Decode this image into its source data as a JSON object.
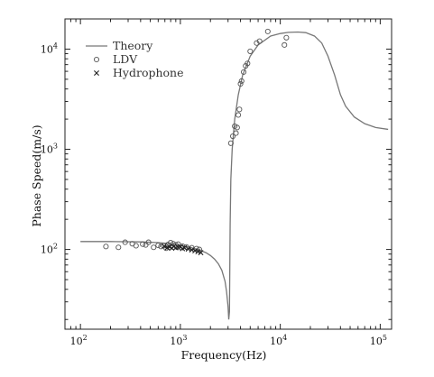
{
  "chart_data": {
    "type": "scatter",
    "title": "",
    "xlabel": "Frequency(Hz)",
    "ylabel": "Phase Speed(m/s)",
    "xscale": "log",
    "yscale": "log",
    "xlim": [
      70,
      130000
    ],
    "ylim": [
      16,
      20000
    ],
    "grid": false,
    "legend": {
      "placement": "top-left"
    },
    "x_ticks": [
      {
        "value": 100,
        "base": "10",
        "exp": "2"
      },
      {
        "value": 1000,
        "base": "10",
        "exp": "3"
      },
      {
        "value": 10000,
        "base": "10",
        "exp": "4"
      },
      {
        "value": 100000,
        "base": "10",
        "exp": "5"
      }
    ],
    "y_ticks": [
      {
        "value": 100,
        "base": "10",
        "exp": "2"
      },
      {
        "value": 1000,
        "base": "10",
        "exp": "3"
      },
      {
        "value": 10000,
        "base": "10",
        "exp": "4"
      }
    ],
    "series": [
      {
        "name": "Theory",
        "kind": "line",
        "color": "#777777",
        "points": [
          [
            100,
            120
          ],
          [
            200,
            120
          ],
          [
            400,
            119
          ],
          [
            600,
            117
          ],
          [
            800,
            114
          ],
          [
            1000,
            110
          ],
          [
            1200,
            106
          ],
          [
            1500,
            100
          ],
          [
            1800,
            93
          ],
          [
            2000,
            87
          ],
          [
            2200,
            80
          ],
          [
            2400,
            72
          ],
          [
            2600,
            62
          ],
          [
            2800,
            48
          ],
          [
            2900,
            38
          ],
          [
            3000,
            27
          ],
          [
            3050,
            20
          ],
          [
            3100,
            24
          ],
          [
            3150,
            180
          ],
          [
            3200,
            500
          ],
          [
            3300,
            1000
          ],
          [
            3500,
            2000
          ],
          [
            3800,
            3500
          ],
          [
            4200,
            5500
          ],
          [
            5000,
            8500
          ],
          [
            6000,
            11000
          ],
          [
            8000,
            13500
          ],
          [
            10000,
            14300
          ],
          [
            12000,
            14700
          ],
          [
            15000,
            14800
          ],
          [
            18000,
            14600
          ],
          [
            22000,
            13500
          ],
          [
            26000,
            11500
          ],
          [
            30000,
            8500
          ],
          [
            35000,
            5500
          ],
          [
            40000,
            3500
          ],
          [
            45000,
            2700
          ],
          [
            55000,
            2100
          ],
          [
            70000,
            1800
          ],
          [
            90000,
            1650
          ],
          [
            120000,
            1580
          ]
        ]
      },
      {
        "name": "LDV",
        "kind": "scatter",
        "marker": "circle",
        "color": "#555555",
        "points": [
          [
            180,
            107
          ],
          [
            240,
            105
          ],
          [
            280,
            118
          ],
          [
            330,
            114
          ],
          [
            360,
            109
          ],
          [
            420,
            113
          ],
          [
            450,
            111
          ],
          [
            480,
            118
          ],
          [
            540,
            105
          ],
          [
            600,
            110
          ],
          [
            640,
            107
          ],
          [
            680,
            109
          ],
          [
            720,
            103
          ],
          [
            750,
            112
          ],
          [
            800,
            117
          ],
          [
            850,
            114
          ],
          [
            900,
            111
          ],
          [
            950,
            113
          ],
          [
            1050,
            108
          ],
          [
            1150,
            106
          ],
          [
            1300,
            104
          ],
          [
            1450,
            102
          ],
          [
            1550,
            100
          ],
          [
            3200,
            1150
          ],
          [
            3350,
            1350
          ],
          [
            3500,
            1700
          ],
          [
            3600,
            1450
          ],
          [
            3700,
            1650
          ],
          [
            3800,
            2200
          ],
          [
            3900,
            2500
          ],
          [
            4000,
            4500
          ],
          [
            4100,
            4800
          ],
          [
            4300,
            5900
          ],
          [
            4500,
            6800
          ],
          [
            4700,
            7200
          ],
          [
            5000,
            9500
          ],
          [
            5800,
            11500
          ],
          [
            6200,
            12000
          ],
          [
            7500,
            15000
          ],
          [
            11000,
            11000
          ],
          [
            11500,
            13000
          ]
        ]
      },
      {
        "name": "Hydrophone",
        "kind": "scatter",
        "marker": "x",
        "color": "#222222",
        "points": [
          [
            690,
            108
          ],
          [
            740,
            104
          ],
          [
            780,
            106
          ],
          [
            820,
            103
          ],
          [
            860,
            107
          ],
          [
            900,
            104
          ],
          [
            950,
            105
          ],
          [
            1000,
            106
          ],
          [
            1050,
            102
          ],
          [
            1100,
            104
          ],
          [
            1200,
            101
          ],
          [
            1300,
            99
          ],
          [
            1400,
            97
          ],
          [
            1500,
            95
          ],
          [
            1600,
            93
          ]
        ]
      }
    ]
  }
}
